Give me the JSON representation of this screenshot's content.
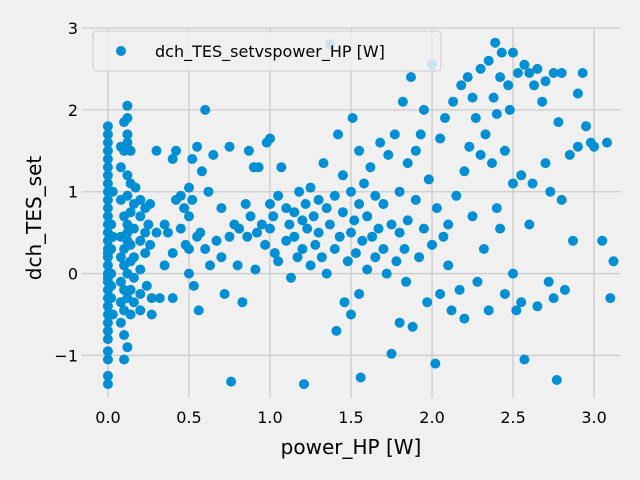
{
  "chart_data": {
    "type": "scatter",
    "title": "",
    "xlabel": "power_HP [W]",
    "ylabel": "dch_TES_set",
    "xlim": [
      -0.16,
      3.16
    ],
    "ylim": [
      -1.52,
      3.0
    ],
    "x_ticks": [
      0.0,
      0.5,
      1.0,
      1.5,
      2.0,
      2.5,
      3.0
    ],
    "x_tick_labels": [
      "0.0",
      "0.5",
      "1.0",
      "1.5",
      "2.0",
      "2.5",
      "3.0"
    ],
    "y_ticks": [
      -1,
      0,
      1,
      2,
      3
    ],
    "y_tick_labels": [
      "−1",
      "0",
      "1",
      "2",
      "3"
    ],
    "grid": true,
    "legend_position": "top-left",
    "series": [
      {
        "name": "dch_TES_setvspower_HP [W]",
        "color": "#008fd5",
        "points": [
          [
            0.0,
            1.8
          ],
          [
            0.0,
            1.6
          ],
          [
            0.0,
            1.5
          ],
          [
            0.0,
            1.4
          ],
          [
            0.0,
            1.2
          ],
          [
            0.0,
            1.1
          ],
          [
            0.0,
            1.0
          ],
          [
            0.0,
            0.9
          ],
          [
            0.0,
            0.8
          ],
          [
            0.0,
            0.7
          ],
          [
            0.0,
            0.6
          ],
          [
            0.0,
            0.5
          ],
          [
            0.0,
            0.4
          ],
          [
            0.0,
            0.3
          ],
          [
            0.0,
            0.2
          ],
          [
            0.0,
            0.1
          ],
          [
            0.0,
            0.0
          ],
          [
            0.0,
            -0.1
          ],
          [
            0.0,
            -0.2
          ],
          [
            0.0,
            -0.3
          ],
          [
            0.0,
            -0.4
          ],
          [
            0.0,
            -0.5
          ],
          [
            0.0,
            -0.6
          ],
          [
            0.0,
            -0.7
          ],
          [
            0.0,
            -0.8
          ],
          [
            0.0,
            -0.95
          ],
          [
            0.0,
            -1.05
          ],
          [
            0.0,
            -1.25
          ],
          [
            0.0,
            -1.35
          ],
          [
            0.0,
            1.7
          ],
          [
            0.0,
            1.3
          ],
          [
            0.0,
            0.25
          ],
          [
            0.0,
            -0.05
          ],
          [
            0.02,
            0.6
          ],
          [
            0.02,
            0.3
          ],
          [
            0.02,
            0.0
          ],
          [
            0.02,
            -0.3
          ],
          [
            0.02,
            -0.15
          ],
          [
            0.03,
            0.45
          ],
          [
            0.03,
            1.0
          ],
          [
            0.03,
            -0.5
          ],
          [
            0.08,
            1.3
          ],
          [
            0.08,
            0.9
          ],
          [
            0.08,
            0.45
          ],
          [
            0.08,
            0.2
          ],
          [
            0.08,
            -0.1
          ],
          [
            0.08,
            -0.35
          ],
          [
            0.08,
            -0.6
          ],
          [
            0.08,
            1.55
          ],
          [
            0.1,
            1.85
          ],
          [
            0.1,
            1.5
          ],
          [
            0.1,
            0.7
          ],
          [
            0.1,
            0.3
          ],
          [
            0.1,
            0.1
          ],
          [
            0.1,
            -0.2
          ],
          [
            0.1,
            -0.45
          ],
          [
            0.1,
            -1.05
          ],
          [
            0.1,
            -0.75
          ],
          [
            0.12,
            2.05
          ],
          [
            0.12,
            1.9
          ],
          [
            0.12,
            1.6
          ],
          [
            0.12,
            1.2
          ],
          [
            0.12,
            0.95
          ],
          [
            0.12,
            0.5
          ],
          [
            0.12,
            0.4
          ],
          [
            0.12,
            0.0
          ],
          [
            0.12,
            -0.3
          ],
          [
            0.12,
            -0.9
          ],
          [
            0.12,
            1.7
          ],
          [
            0.12,
            0.6
          ],
          [
            0.14,
            1.1
          ],
          [
            0.14,
            0.75
          ],
          [
            0.14,
            0.35
          ],
          [
            0.14,
            0.15
          ],
          [
            0.14,
            -0.2
          ],
          [
            0.14,
            -0.5
          ],
          [
            0.14,
            1.5
          ],
          [
            0.16,
            0.85
          ],
          [
            0.16,
            0.55
          ],
          [
            0.16,
            0.2
          ],
          [
            0.16,
            -0.05
          ],
          [
            0.16,
            -0.35
          ],
          [
            0.17,
            1.05
          ],
          [
            0.2,
            0.7
          ],
          [
            0.2,
            0.4
          ],
          [
            0.2,
            0.05
          ],
          [
            0.2,
            -0.25
          ],
          [
            0.2,
            -0.45
          ],
          [
            0.2,
            0.9
          ],
          [
            0.23,
            0.8
          ],
          [
            0.23,
            0.5
          ],
          [
            0.23,
            0.25
          ],
          [
            0.24,
            -0.15
          ],
          [
            0.25,
            0.6
          ],
          [
            0.26,
            0.85
          ],
          [
            0.26,
            0.35
          ],
          [
            0.27,
            -0.5
          ],
          [
            0.27,
            -0.3
          ],
          [
            0.3,
            1.5
          ],
          [
            0.3,
            0.5
          ],
          [
            0.32,
            -0.3
          ],
          [
            0.35,
            0.6
          ],
          [
            0.35,
            0.1
          ],
          [
            0.37,
            0.5
          ],
          [
            0.4,
            1.4
          ],
          [
            0.4,
            0.25
          ],
          [
            0.4,
            -0.3
          ],
          [
            0.42,
            1.5
          ],
          [
            0.42,
            0.9
          ],
          [
            0.45,
            0.55
          ],
          [
            0.45,
            0.95
          ],
          [
            0.47,
            0.8
          ],
          [
            0.48,
            0.35
          ],
          [
            0.5,
            0.3
          ],
          [
            0.5,
            0.0
          ],
          [
            0.5,
            1.05
          ],
          [
            0.5,
            0.7
          ],
          [
            0.52,
            1.4
          ],
          [
            0.52,
            0.9
          ],
          [
            0.53,
            -0.15
          ],
          [
            0.55,
            1.55
          ],
          [
            0.55,
            0.45
          ],
          [
            0.56,
            -0.45
          ],
          [
            0.57,
            0.5
          ],
          [
            0.58,
            1.25
          ],
          [
            0.6,
            2.0
          ],
          [
            0.6,
            0.3
          ],
          [
            0.62,
            1.0
          ],
          [
            0.63,
            0.1
          ],
          [
            0.65,
            1.45
          ],
          [
            0.67,
            0.4
          ],
          [
            0.7,
            0.8
          ],
          [
            0.7,
            0.2
          ],
          [
            0.72,
            -0.25
          ],
          [
            0.75,
            1.55
          ],
          [
            0.75,
            0.45
          ],
          [
            0.76,
            -1.32
          ],
          [
            0.78,
            0.6
          ],
          [
            0.8,
            0.1
          ],
          [
            0.81,
            0.55
          ],
          [
            0.83,
            -0.35
          ],
          [
            0.85,
            0.85
          ],
          [
            0.86,
            0.45
          ],
          [
            0.87,
            1.5
          ],
          [
            0.88,
            0.7
          ],
          [
            0.9,
            1.3
          ],
          [
            0.91,
            0.05
          ],
          [
            0.92,
            0.5
          ],
          [
            0.93,
            1.3
          ],
          [
            0.95,
            0.6
          ],
          [
            0.97,
            0.35
          ],
          [
            0.98,
            1.6
          ],
          [
            1.0,
            0.85
          ],
          [
            1.0,
            0.55
          ],
          [
            1.0,
            1.65
          ],
          [
            1.02,
            0.7
          ],
          [
            1.03,
            0.25
          ],
          [
            1.05,
            0.95
          ],
          [
            1.05,
            0.15
          ],
          [
            1.07,
            1.3
          ],
          [
            1.1,
            0.8
          ],
          [
            1.1,
            0.4
          ],
          [
            1.12,
            0.6
          ],
          [
            1.13,
            -0.05
          ],
          [
            1.15,
            0.45
          ],
          [
            1.15,
            0.75
          ],
          [
            1.17,
            0.2
          ],
          [
            1.18,
            1.0
          ],
          [
            1.2,
            0.3
          ],
          [
            1.2,
            0.65
          ],
          [
            1.21,
            -1.35
          ],
          [
            1.22,
            0.85
          ],
          [
            1.23,
            0.55
          ],
          [
            1.25,
            0.1
          ],
          [
            1.25,
            1.05
          ],
          [
            1.27,
            0.7
          ],
          [
            1.28,
            0.35
          ],
          [
            1.3,
            0.9
          ],
          [
            1.3,
            0.5
          ],
          [
            1.32,
            0.2
          ],
          [
            1.33,
            1.35
          ],
          [
            1.35,
            0.8
          ],
          [
            1.35,
            0.0
          ],
          [
            1.37,
            2.8
          ],
          [
            1.37,
            0.6
          ],
          [
            1.4,
            0.3
          ],
          [
            1.4,
            0.95
          ],
          [
            1.41,
            -0.7
          ],
          [
            1.42,
            1.7
          ],
          [
            1.43,
            0.45
          ],
          [
            1.45,
            0.75
          ],
          [
            1.45,
            1.2
          ],
          [
            1.46,
            -0.35
          ],
          [
            1.48,
            0.15
          ],
          [
            1.5,
            0.5
          ],
          [
            1.5,
            1.0
          ],
          [
            1.5,
            -0.5
          ],
          [
            1.51,
            1.9
          ],
          [
            1.52,
            0.65
          ],
          [
            1.53,
            0.25
          ],
          [
            1.55,
            0.85
          ],
          [
            1.55,
            1.5
          ],
          [
            1.55,
            -0.25
          ],
          [
            1.56,
            -1.27
          ],
          [
            1.57,
            0.4
          ],
          [
            1.58,
            1.1
          ],
          [
            1.6,
            0.05
          ],
          [
            1.6,
            0.7
          ],
          [
            1.62,
            1.3
          ],
          [
            1.63,
            0.45
          ],
          [
            1.65,
            0.95
          ],
          [
            1.65,
            0.2
          ],
          [
            1.67,
            0.55
          ],
          [
            1.68,
            1.6
          ],
          [
            1.7,
            0.3
          ],
          [
            1.7,
            0.85
          ],
          [
            1.72,
            0.0
          ],
          [
            1.73,
            1.45
          ],
          [
            1.75,
            0.6
          ],
          [
            1.75,
            -0.98
          ],
          [
            1.77,
            1.7
          ],
          [
            1.78,
            0.15
          ],
          [
            1.8,
            0.5
          ],
          [
            1.8,
            1.0
          ],
          [
            1.8,
            -0.6
          ],
          [
            1.82,
            2.1
          ],
          [
            1.83,
            0.3
          ],
          [
            1.84,
            -0.1
          ],
          [
            1.85,
            1.35
          ],
          [
            1.85,
            0.65
          ],
          [
            1.87,
            2.4
          ],
          [
            1.88,
            -0.65
          ],
          [
            1.9,
            0.9
          ],
          [
            1.9,
            1.5
          ],
          [
            1.92,
            0.2
          ],
          [
            1.93,
            1.7
          ],
          [
            1.95,
            0.55
          ],
          [
            1.95,
            2.0
          ],
          [
            1.97,
            -0.35
          ],
          [
            1.98,
            1.15
          ],
          [
            2.0,
            2.55
          ],
          [
            2.0,
            0.35
          ],
          [
            2.02,
            -1.1
          ],
          [
            2.03,
            0.8
          ],
          [
            2.05,
            1.65
          ],
          [
            2.05,
            -0.25
          ],
          [
            2.07,
            0.45
          ],
          [
            2.08,
            1.9
          ],
          [
            2.1,
            0.1
          ],
          [
            2.1,
            0.6
          ],
          [
            2.12,
            -0.45
          ],
          [
            2.13,
            2.1
          ],
          [
            2.15,
            0.95
          ],
          [
            2.17,
            -0.2
          ],
          [
            2.18,
            2.3
          ],
          [
            2.2,
            1.25
          ],
          [
            2.2,
            -0.55
          ],
          [
            2.22,
            2.4
          ],
          [
            2.23,
            1.55
          ],
          [
            2.25,
            0.7
          ],
          [
            2.25,
            2.15
          ],
          [
            2.27,
            1.9
          ],
          [
            2.28,
            -0.1
          ],
          [
            2.3,
            1.45
          ],
          [
            2.3,
            2.5
          ],
          [
            2.32,
            0.3
          ],
          [
            2.33,
            1.7
          ],
          [
            2.35,
            2.6
          ],
          [
            2.35,
            -0.45
          ],
          [
            2.37,
            1.35
          ],
          [
            2.38,
            2.15
          ],
          [
            2.39,
            2.82
          ],
          [
            2.4,
            0.8
          ],
          [
            2.4,
            1.95
          ],
          [
            2.42,
            0.55
          ],
          [
            2.42,
            2.4
          ],
          [
            2.43,
            2.7
          ],
          [
            2.45,
            1.5
          ],
          [
            2.45,
            -0.25
          ],
          [
            2.47,
            2.3
          ],
          [
            2.48,
            2.0
          ],
          [
            2.5,
            0.0
          ],
          [
            2.5,
            1.1
          ],
          [
            2.5,
            2.7
          ],
          [
            2.52,
            -0.45
          ],
          [
            2.53,
            2.45
          ],
          [
            2.55,
            1.2
          ],
          [
            2.55,
            -0.35
          ],
          [
            2.57,
            2.55
          ],
          [
            2.57,
            -1.05
          ],
          [
            2.6,
            2.45
          ],
          [
            2.6,
            0.6
          ],
          [
            2.62,
            1.1
          ],
          [
            2.63,
            2.3
          ],
          [
            2.65,
            2.5
          ],
          [
            2.65,
            -0.4
          ],
          [
            2.68,
            2.1
          ],
          [
            2.7,
            1.35
          ],
          [
            2.7,
            2.35
          ],
          [
            2.72,
            -0.1
          ],
          [
            2.73,
            1.0
          ],
          [
            2.75,
            2.45
          ],
          [
            2.75,
            -0.3
          ],
          [
            2.77,
            -1.3
          ],
          [
            2.78,
            1.85
          ],
          [
            2.8,
            0.9
          ],
          [
            2.8,
            2.45
          ],
          [
            2.82,
            -0.2
          ],
          [
            2.85,
            1.45
          ],
          [
            2.87,
            0.4
          ],
          [
            2.9,
            1.55
          ],
          [
            2.9,
            2.2
          ],
          [
            2.93,
            2.45
          ],
          [
            2.95,
            1.8
          ],
          [
            2.98,
            1.6
          ],
          [
            3.0,
            1.55
          ],
          [
            3.05,
            0.4
          ],
          [
            3.08,
            1.6
          ],
          [
            3.1,
            -0.3
          ],
          [
            3.12,
            0.15
          ]
        ]
      }
    ]
  }
}
